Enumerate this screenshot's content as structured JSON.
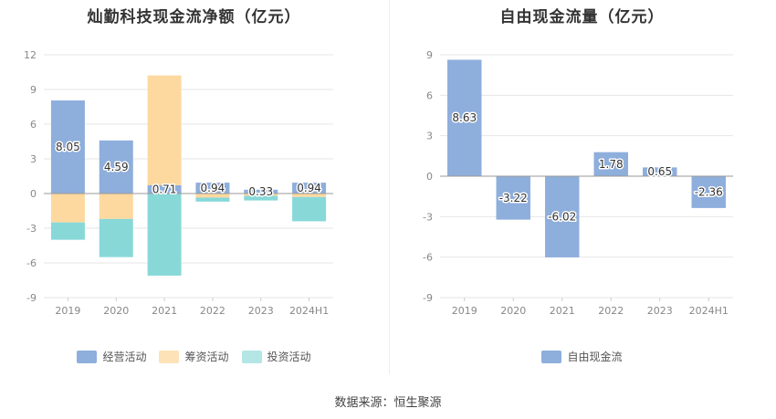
{
  "colors": {
    "operating": "#8eaedc",
    "financing": "#fdd9a0",
    "investing": "#88d8d8",
    "free_cash": "#8eaedc",
    "axis_text": "#888888",
    "grid": "#e6e6e6"
  },
  "chart_data": [
    {
      "type": "bar",
      "stacked": true,
      "title": "灿勤科技现金流净额（亿元）",
      "categories": [
        "2019",
        "2020",
        "2021",
        "2022",
        "2023",
        "2024H1"
      ],
      "yticks": [
        "12",
        "9",
        "6",
        "3",
        "0",
        "-3",
        "-6",
        "-9"
      ],
      "ylim": [
        -9,
        12
      ],
      "legend_position": "bottom",
      "series": [
        {
          "name": "经营活动",
          "values": [
            8.05,
            4.59,
            0.71,
            0.94,
            0.33,
            0.94
          ],
          "labels": [
            "8.05",
            "4.59",
            "0.71",
            "0.94",
            "0.33",
            "0.94"
          ]
        },
        {
          "name": "筹资活动",
          "values": [
            -2.5,
            -2.2,
            9.5,
            -0.35,
            -0.2,
            -0.3
          ]
        },
        {
          "name": "投资活动",
          "values": [
            -1.5,
            -3.3,
            -7.1,
            -0.35,
            -0.4,
            -2.1
          ]
        }
      ]
    },
    {
      "type": "bar",
      "title": "自由现金流量（亿元）",
      "categories": [
        "2019",
        "2020",
        "2021",
        "2022",
        "2023",
        "2024H1"
      ],
      "yticks": [
        "9",
        "6",
        "3",
        "0",
        "-3",
        "-6",
        "-9"
      ],
      "ylim": [
        -9,
        9
      ],
      "legend_position": "bottom",
      "series": [
        {
          "name": "自由现金流",
          "values": [
            8.63,
            -3.22,
            -6.02,
            1.78,
            0.65,
            -2.36
          ],
          "labels": [
            "8.63",
            "-3.22",
            "-6.02",
            "1.78",
            "0.65",
            "-2.36"
          ]
        }
      ]
    }
  ],
  "source_text": "数据来源：恒生聚源"
}
